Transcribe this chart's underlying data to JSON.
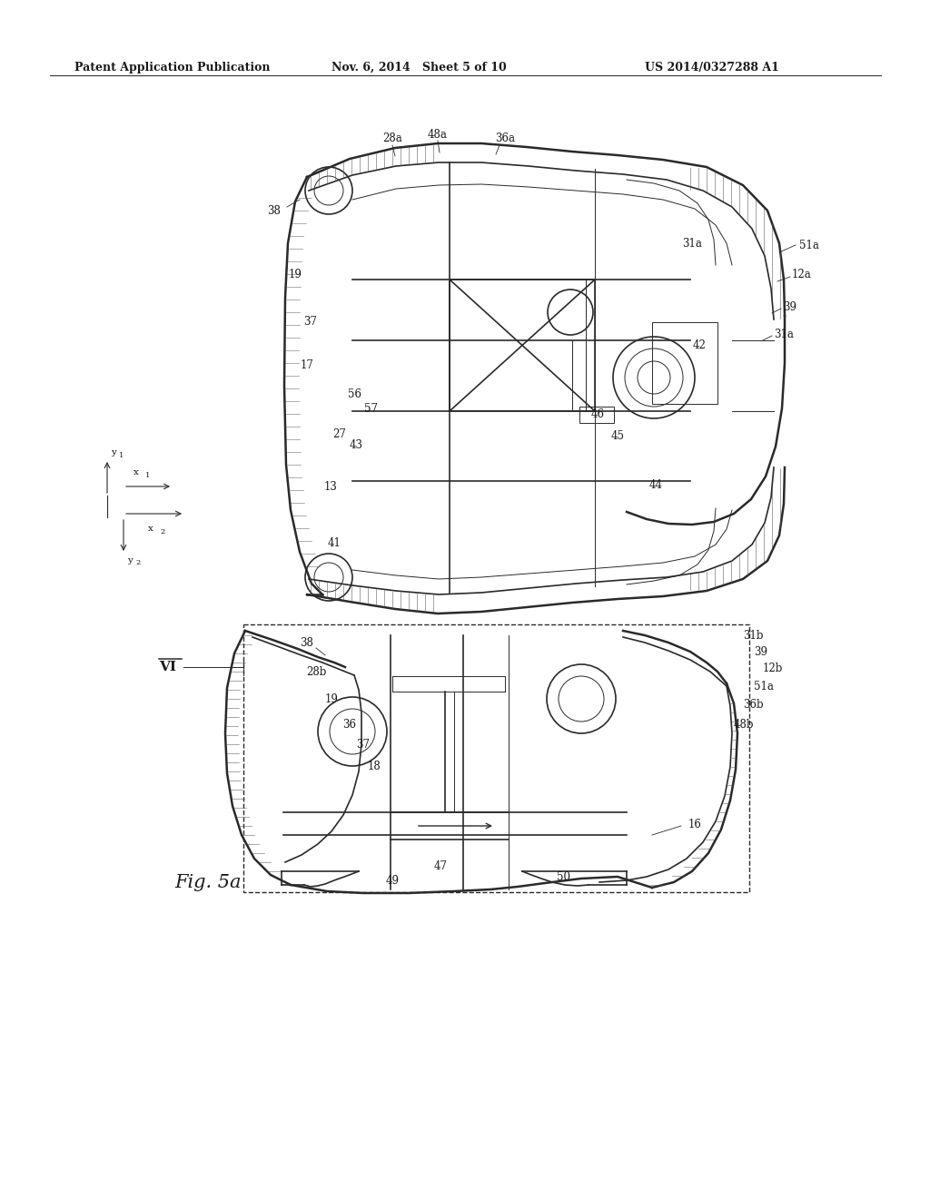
{
  "background_color": "#ffffff",
  "header_left": "Patent Application Publication",
  "header_center": "Nov. 6, 2014   Sheet 5 of 10",
  "header_right": "US 2014/0327288 A1",
  "figure_label": "Fig. 5a",
  "section_label": "VI",
  "header_fontsize": 9,
  "label_fontsize": 8.5,
  "color_line": "#2a2a2a",
  "color_hatch": "#555555",
  "lw_thick": 1.8,
  "lw_main": 1.2,
  "lw_thin": 0.7
}
